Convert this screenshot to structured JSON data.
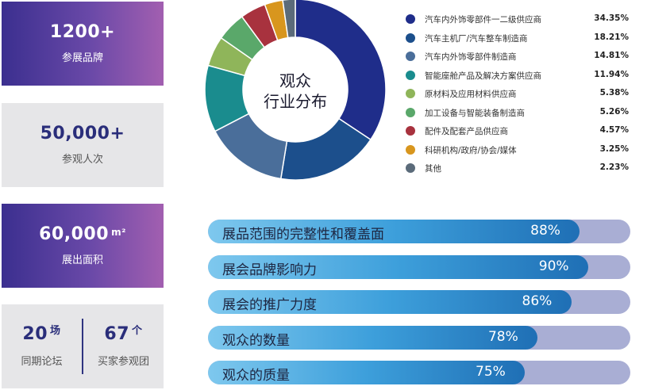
{
  "stats": {
    "brands": {
      "value": "1200+",
      "label": "参展品牌"
    },
    "visitors": {
      "value": "50,000+",
      "label": "参观人次"
    },
    "area": {
      "value": "60,000",
      "unit": "m²",
      "label": "展出面积"
    },
    "forums": {
      "value": "20",
      "unit": "场",
      "label": "同期论坛"
    },
    "buyers": {
      "value": "67",
      "unit": "个",
      "label": "买家参观团"
    }
  },
  "chart_data": [
    {
      "type": "pie",
      "title": "观众\n行业分布",
      "legend_position": "right",
      "categories": [
        "汽车内外饰零部件一二级供应商",
        "汽车主机厂/汽车整车制造商",
        "汽车内外饰零部件制造商",
        "智能座舱产品及解决方案供应商",
        "原材料及应用材料供应商",
        "加工设备与智能装备制造商",
        "配件及配套产品供应商",
        "科研机构/政府/协会/媒体",
        "其他"
      ],
      "values": [
        34.35,
        18.21,
        14.81,
        11.94,
        5.38,
        5.26,
        4.57,
        3.25,
        2.23
      ],
      "labels": [
        "34.35%",
        "18.21%",
        "14.81%",
        "11.94%",
        "5.38%",
        "5.26%",
        "4.57%",
        "3.25%",
        "2.23%"
      ],
      "colors": [
        "#1f2d8a",
        "#1c4f8c",
        "#4a6e9a",
        "#1a8c8e",
        "#8fb55a",
        "#5aa86a",
        "#a8323e",
        "#d8961e",
        "#5b6b7a"
      ]
    },
    {
      "type": "bar",
      "orientation": "horizontal",
      "categories": [
        "展品范围的完整性和覆盖面",
        "展会品牌影响力",
        "展会的推广力度",
        "观众的数量",
        "观众的质量"
      ],
      "values": [
        88,
        90,
        86,
        78,
        75
      ],
      "labels": [
        "88%",
        "90%",
        "86%",
        "78%",
        "75%"
      ],
      "xlim": [
        0,
        100
      ]
    }
  ]
}
